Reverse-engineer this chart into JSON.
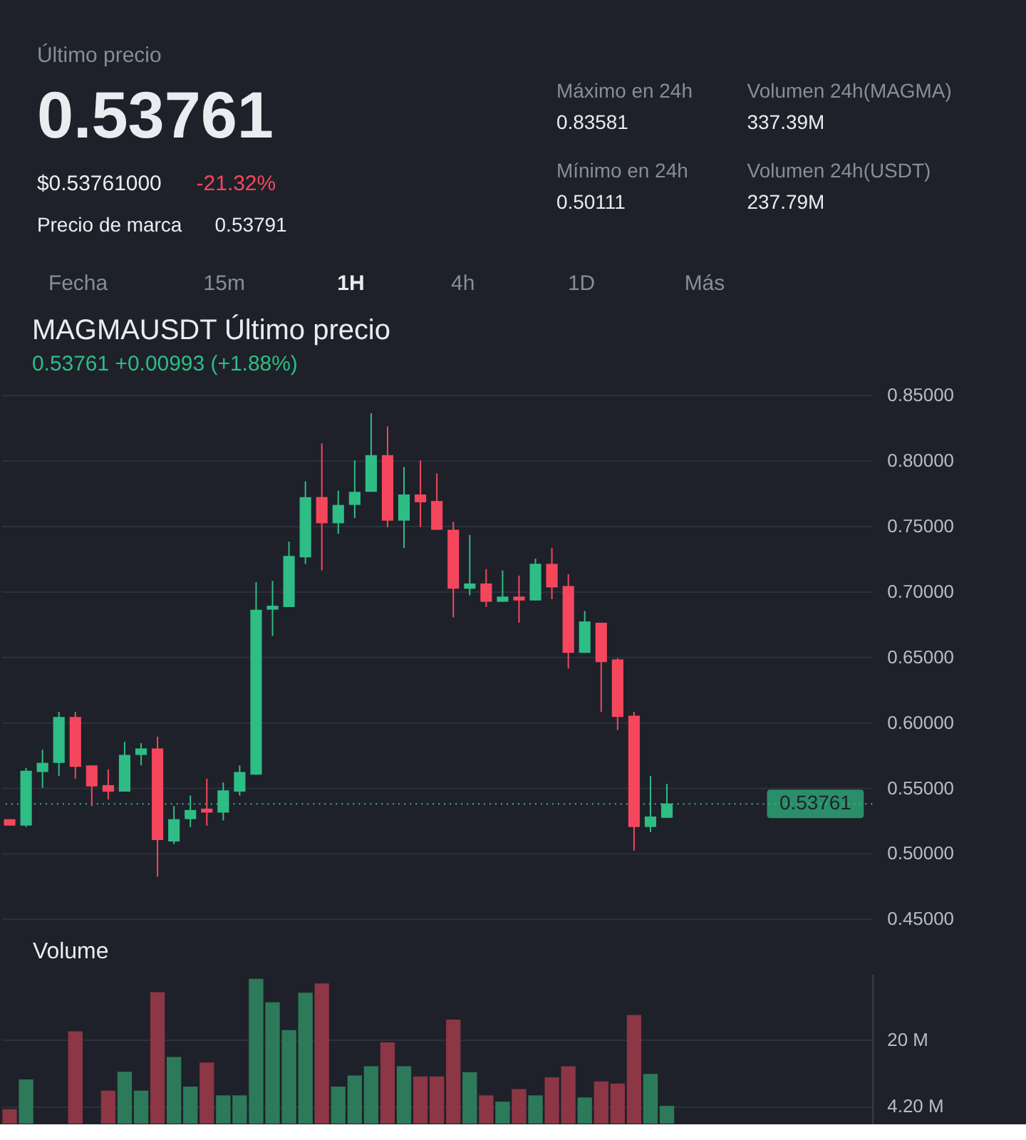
{
  "chart_data": [
    {
      "type": "other",
      "title": "Último precio",
      "annotations": [
        "0.53761",
        "$0.53761000",
        "-21.32%",
        "Precio de marca",
        "0.53791",
        "Máximo en 24h",
        "0.83581",
        "Mínimo en 24h",
        "0.50111",
        "Volumen 24h(MAGMA)",
        "337.39M",
        "Volumen 24h(USDT)",
        "237.79M",
        "Fecha",
        "15m",
        "1H",
        "4h",
        "1D",
        "Más"
      ]
    },
    {
      "type": "candlestick",
      "title": "MAGMAUSDT Último precio",
      "subtitle": "0.53761 +0.00993 (+1.88%)",
      "categories": [
        null,
        null,
        null,
        null,
        null,
        null,
        null,
        null,
        null,
        null,
        null,
        null,
        null,
        null,
        null,
        null,
        null,
        null,
        null,
        null,
        null,
        null,
        null,
        null,
        null,
        null,
        null,
        null,
        null,
        null,
        null,
        null,
        null,
        null,
        null,
        null,
        null,
        null,
        null,
        null,
        null,
        null,
        null,
        null,
        null,
        null,
        null,
        null,
        null,
        null,
        null,
        null,
        null
      ],
      "ohlc": [
        [
          0.526,
          0.526,
          0.521,
          0.521
        ],
        [
          0.521,
          0.565,
          0.52,
          0.563
        ],
        [
          0.562,
          0.579,
          0.55,
          0.569
        ],
        [
          0.569,
          0.608,
          0.559,
          0.604
        ],
        [
          0.604,
          0.608,
          0.557,
          0.566
        ],
        [
          0.567,
          0.567,
          0.536,
          0.551
        ],
        [
          0.552,
          0.564,
          0.541,
          0.547
        ],
        [
          0.547,
          0.585,
          0.547,
          0.575
        ],
        [
          0.575,
          0.584,
          0.567,
          0.58
        ],
        [
          0.58,
          0.589,
          0.482,
          0.51
        ],
        [
          0.509,
          0.536,
          0.507,
          0.526
        ],
        [
          0.526,
          0.544,
          0.52,
          0.533
        ],
        [
          0.534,
          0.557,
          0.521,
          0.531
        ],
        [
          0.531,
          0.554,
          0.525,
          0.548
        ],
        [
          0.547,
          0.567,
          0.544,
          0.562
        ],
        [
          0.56,
          0.707,
          0.56,
          0.686
        ],
        [
          0.686,
          0.708,
          0.666,
          0.689
        ],
        [
          0.688,
          0.738,
          0.688,
          0.727
        ],
        [
          0.726,
          0.784,
          0.721,
          0.772
        ],
        [
          0.772,
          0.813,
          0.716,
          0.752
        ],
        [
          0.752,
          0.777,
          0.744,
          0.766
        ],
        [
          0.766,
          0.8,
          0.756,
          0.776
        ],
        [
          0.776,
          0.836,
          0.776,
          0.804
        ],
        [
          0.804,
          0.826,
          0.749,
          0.754
        ],
        [
          0.754,
          0.795,
          0.733,
          0.774
        ],
        [
          0.774,
          0.8,
          0.749,
          0.768
        ],
        [
          0.769,
          0.79,
          0.747,
          0.747
        ],
        [
          0.747,
          0.753,
          0.68,
          0.702
        ],
        [
          0.702,
          0.743,
          0.697,
          0.706
        ],
        [
          0.706,
          0.717,
          0.688,
          0.692
        ],
        [
          0.692,
          0.716,
          0.692,
          0.696
        ],
        [
          0.696,
          0.712,
          0.676,
          0.693
        ],
        [
          0.693,
          0.725,
          0.693,
          0.721
        ],
        [
          0.721,
          0.733,
          0.694,
          0.703
        ],
        [
          0.704,
          0.713,
          0.641,
          0.653
        ],
        [
          0.653,
          0.685,
          0.653,
          0.677
        ],
        [
          0.676,
          0.676,
          0.608,
          0.646
        ],
        [
          0.648,
          0.649,
          0.594,
          0.604
        ],
        [
          0.605,
          0.608,
          0.502,
          0.52
        ],
        [
          0.52,
          0.559,
          0.516,
          0.528
        ],
        [
          0.527,
          0.553,
          0.527,
          0.538
        ],
        null,
        null,
        null,
        null,
        null,
        null,
        null,
        null,
        null,
        null,
        null,
        null
      ],
      "colors": [
        "#f6465d",
        "#2ebd85",
        "#2ebd85",
        "#2ebd85",
        "#f6465d",
        "#f6465d",
        "#f6465d",
        "#2ebd85",
        "#2ebd85",
        "#f6465d",
        "#2ebd85",
        "#2ebd85",
        "#f6465d",
        "#2ebd85",
        "#2ebd85",
        "#2ebd85",
        "#2ebd85",
        "#2ebd85",
        "#2ebd85",
        "#f6465d",
        "#2ebd85",
        "#2ebd85",
        "#2ebd85",
        "#f6465d",
        "#2ebd85",
        "#f6465d",
        "#f6465d",
        "#f6465d",
        "#2ebd85",
        "#f6465d",
        "#2ebd85",
        "#f6465d",
        "#2ebd85",
        "#f6465d",
        "#f6465d",
        "#2ebd85",
        "#f6465d",
        "#f6465d",
        "#f6465d",
        "#2ebd85",
        "#2ebd85",
        null,
        null,
        null,
        null,
        null,
        null,
        null,
        null,
        null,
        null,
        null,
        null
      ],
      "ylim": [
        0.45,
        0.85
      ],
      "yticks": [
        {
          "value": 0.45,
          "label": "0.45000"
        },
        {
          "value": 0.5,
          "label": "0.50000"
        },
        {
          "value": 0.55,
          "label": "0.55000"
        },
        {
          "value": 0.6,
          "label": "0.60000"
        },
        {
          "value": 0.65,
          "label": "0.65000"
        },
        {
          "value": 0.7,
          "label": "0.70000"
        },
        {
          "value": 0.75,
          "label": "0.75000"
        },
        {
          "value": 0.8,
          "label": "0.80000"
        },
        {
          "value": 0.85,
          "label": "0.85000"
        }
      ],
      "grid": "y",
      "ref_lines": [
        {
          "axis": "y",
          "value": 0.53761,
          "label": "0.53761",
          "color": "#2ebd85",
          "line_style": "dotted"
        }
      ]
    },
    {
      "type": "bar",
      "title": "Volume",
      "categories": [
        null,
        null,
        null,
        null,
        null,
        null,
        null,
        null,
        null,
        null,
        null,
        null,
        null,
        null,
        null,
        null,
        null,
        null,
        null,
        null,
        null,
        null,
        null,
        null,
        null,
        null,
        null,
        null,
        null,
        null,
        null,
        null,
        null,
        null,
        null,
        null,
        null,
        null,
        null,
        null,
        null,
        null,
        null,
        null,
        null,
        null,
        null,
        null,
        null,
        null,
        null,
        null,
        null
      ],
      "values": [
        3.4,
        10.5,
        null,
        null,
        21.9,
        null,
        7.8,
        12.3,
        7.8,
        31.2,
        15.8,
        8.8,
        14.5,
        6.7,
        6.7,
        34.4,
        28.8,
        22.2,
        31.1,
        33.3,
        8.8,
        11.4,
        13.6,
        19.3,
        13.6,
        11.2,
        11.2,
        24.7,
        12.2,
        6.7,
        5.2,
        8.2,
        6.7,
        11.0,
        13.6,
        6.2,
        10.0,
        9.5,
        25.8,
        11.8,
        4.2,
        null,
        null,
        null,
        null,
        null,
        null,
        null,
        null,
        null,
        null,
        null,
        null
      ],
      "colors": [
        "#8c3646",
        "#2d7a5a",
        "#2d7a5a",
        "#2d7a5a",
        "#8c3646",
        "#8c3646",
        "#8c3646",
        "#2d7a5a",
        "#2d7a5a",
        "#8c3646",
        "#2d7a5a",
        "#2d7a5a",
        "#8c3646",
        "#2d7a5a",
        "#2d7a5a",
        "#2d7a5a",
        "#2d7a5a",
        "#2d7a5a",
        "#2d7a5a",
        "#8c3646",
        "#2d7a5a",
        "#2d7a5a",
        "#2d7a5a",
        "#8c3646",
        "#2d7a5a",
        "#8c3646",
        "#8c3646",
        "#8c3646",
        "#2d7a5a",
        "#8c3646",
        "#2d7a5a",
        "#8c3646",
        "#2d7a5a",
        "#8c3646",
        "#8c3646",
        "#2d7a5a",
        "#8c3646",
        "#8c3646",
        "#8c3646",
        "#2d7a5a",
        "#2d7a5a",
        null,
        null,
        null,
        null,
        null,
        null,
        null,
        null,
        null,
        null,
        null,
        null
      ],
      "ylim": [
        0,
        35.5
      ],
      "yticks": [
        {
          "value": 4.2,
          "label": "4.20 M"
        },
        {
          "value": 20,
          "label": "20 M"
        }
      ],
      "grid": "y"
    }
  ]
}
